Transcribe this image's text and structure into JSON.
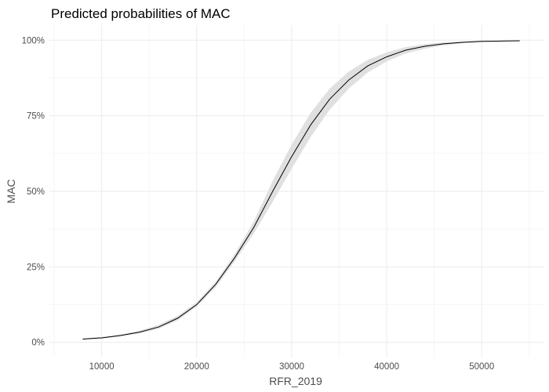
{
  "chart_data": {
    "type": "line",
    "title": "Predicted probabilities of MAC",
    "xlabel": "RFR_2019",
    "ylabel": "MAC",
    "xlim": [
      4500,
      56500
    ],
    "ylim": [
      -0.05,
      1.05
    ],
    "x_ticks": [
      10000,
      20000,
      30000,
      40000,
      50000
    ],
    "x_tick_labels": [
      "10000",
      "20000",
      "30000",
      "40000",
      "50000"
    ],
    "y_ticks": [
      0,
      0.25,
      0.5,
      0.75,
      1.0
    ],
    "y_tick_labels": [
      "0%",
      "25%",
      "50%",
      "75%",
      "100%"
    ],
    "grid": true,
    "legend": "none",
    "colors": {
      "line": "#000000",
      "ribbon": "#e0e0e0"
    },
    "series": [
      {
        "x": [
          8000,
          10000,
          12000,
          14000,
          16000,
          18000,
          20000,
          22000,
          24000,
          26000,
          28000,
          30000,
          32000,
          34000,
          36000,
          38000,
          40000,
          42000,
          44000,
          46000,
          48000,
          50000,
          52000,
          54000
        ],
        "y": [
          0.011,
          0.015,
          0.023,
          0.034,
          0.051,
          0.08,
          0.125,
          0.192,
          0.28,
          0.38,
          0.5,
          0.615,
          0.72,
          0.805,
          0.868,
          0.915,
          0.945,
          0.967,
          0.98,
          0.988,
          0.993,
          0.996,
          0.997,
          0.998
        ],
        "lower": [
          0.009,
          0.013,
          0.02,
          0.03,
          0.045,
          0.073,
          0.118,
          0.183,
          0.268,
          0.36,
          0.465,
          0.575,
          0.68,
          0.77,
          0.84,
          0.893,
          0.93,
          0.956,
          0.972,
          0.983,
          0.99,
          0.994,
          0.996,
          0.997
        ],
        "upper": [
          0.013,
          0.018,
          0.026,
          0.039,
          0.058,
          0.088,
          0.133,
          0.201,
          0.292,
          0.4,
          0.535,
          0.655,
          0.76,
          0.84,
          0.896,
          0.935,
          0.96,
          0.977,
          0.987,
          0.993,
          0.996,
          0.998,
          0.999,
          0.999
        ]
      }
    ]
  }
}
